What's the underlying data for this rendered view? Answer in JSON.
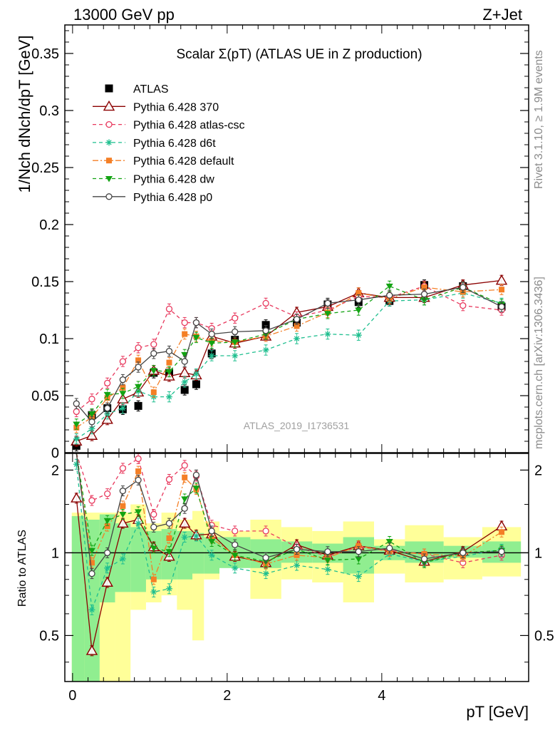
{
  "header": {
    "energy_label": "13000 GeV pp",
    "process_label": "Z+Jet"
  },
  "side_notes": {
    "rivet": "Rivet 3.1.10, ≥ 1.9M events",
    "source": "mcplots.cern.ch [arXiv:1306.3436]"
  },
  "watermark": "ATLAS_2019_I1736531",
  "chart_data": [
    {
      "type": "line",
      "panel": "main",
      "title": "Scalar Σ(pT) (ATLAS UE in Z production)",
      "xlabel": "pT [GeV]",
      "ylabel": "1/Nch dNch/dpT [GeV]",
      "xlim": [
        -0.1,
        5.9
      ],
      "ylim": [
        0,
        0.375
      ],
      "yticks": [
        0,
        0.05,
        0.1,
        0.15,
        0.2,
        0.25,
        0.3,
        0.35
      ],
      "ytick_labels": [
        "0",
        "0.05",
        "0.1",
        "0.15",
        "0.2",
        "0.25",
        "0.3",
        "0.35"
      ],
      "legend_position": "top-left",
      "x": [
        0.05,
        0.25,
        0.45,
        0.65,
        0.85,
        1.05,
        1.25,
        1.45,
        1.6,
        1.8,
        2.1,
        2.5,
        2.9,
        3.3,
        3.7,
        4.1,
        4.55,
        5.05,
        5.55
      ],
      "series": [
        {
          "name": "ATLAS",
          "color": "#000000",
          "marker": "square",
          "line": "none",
          "values": [
            0.006,
            0.033,
            0.039,
            0.038,
            0.041,
            0.07,
            0.07,
            0.055,
            0.06,
            0.087,
            0.099,
            0.112,
            0.114,
            0.13,
            0.132,
            0.133,
            0.147,
            0.146,
            0.128
          ]
        },
        {
          "name": "Pythia 6.428 370",
          "color": "#8b0000",
          "marker": "triangle-open",
          "line": "solid",
          "values": [
            0.01,
            0.015,
            0.029,
            0.047,
            0.053,
            0.072,
            0.067,
            0.07,
            0.068,
            0.102,
            0.096,
            0.102,
            0.123,
            0.128,
            0.14,
            0.136,
            0.136,
            0.147,
            0.151
          ]
        },
        {
          "name": "Pythia 6.428 atlas-csc",
          "color": "#e8385d",
          "marker": "circle-open",
          "line": "dashed",
          "values": [
            0.036,
            0.047,
            0.061,
            0.08,
            0.092,
            0.095,
            0.126,
            0.114,
            0.114,
            0.109,
            0.118,
            0.131,
            0.119,
            0.125,
            0.137,
            0.136,
            0.146,
            0.129,
            0.125
          ]
        },
        {
          "name": "Pythia 6.428 d6t",
          "color": "#1fbf8f",
          "marker": "star",
          "line": "dashed",
          "values": [
            0.012,
            0.021,
            0.034,
            0.039,
            0.054,
            0.049,
            0.049,
            0.062,
            0.069,
            0.085,
            0.085,
            0.09,
            0.1,
            0.104,
            0.103,
            0.133,
            0.134,
            0.14,
            0.131
          ]
        },
        {
          "name": "Pythia 6.428 default",
          "color": "#f47f26",
          "marker": "square-filled",
          "line": "dashdot",
          "values": [
            0.022,
            0.031,
            0.048,
            0.057,
            0.081,
            0.053,
            0.079,
            0.104,
            0.102,
            0.098,
            0.097,
            0.102,
            0.111,
            0.123,
            0.14,
            0.135,
            0.145,
            0.141,
            0.143
          ]
        },
        {
          "name": "Pythia 6.428 dw",
          "color": "#13a313",
          "marker": "triangle-down",
          "line": "dashed",
          "values": [
            0.025,
            0.034,
            0.051,
            0.052,
            0.058,
            0.072,
            0.071,
            0.086,
            0.101,
            0.096,
            0.097,
            0.104,
            0.117,
            0.122,
            0.125,
            0.146,
            0.134,
            0.145,
            0.13
          ]
        },
        {
          "name": "Pythia 6.428 p0",
          "color": "#444444",
          "marker": "circle-open",
          "line": "solid",
          "values": [
            0.043,
            0.027,
            0.039,
            0.064,
            0.075,
            0.087,
            0.089,
            0.08,
            0.114,
            0.104,
            0.106,
            0.107,
            0.117,
            0.131,
            0.134,
            0.138,
            0.139,
            0.145,
            0.128
          ]
        }
      ]
    },
    {
      "type": "line",
      "panel": "ratio",
      "xlabel": "pT [GeV]",
      "ylabel": "Ratio to ATLAS",
      "xlim": [
        -0.1,
        5.9
      ],
      "ylim": [
        0.34,
        2.3
      ],
      "log_y": true,
      "xticks": [
        0,
        2,
        4
      ],
      "xtick_labels": [
        "0",
        "2",
        "4"
      ],
      "yticks": [
        0.5,
        1,
        2
      ],
      "ytick_labels": [
        "0.5",
        "1",
        "2"
      ],
      "x": [
        0.05,
        0.25,
        0.45,
        0.65,
        0.85,
        1.05,
        1.25,
        1.45,
        1.6,
        1.8,
        2.1,
        2.5,
        2.9,
        3.3,
        3.7,
        4.1,
        4.55,
        5.05,
        5.55
      ],
      "bands": {
        "bin_edges": [
          -0.01,
          0.15,
          0.35,
          0.55,
          0.75,
          0.95,
          1.15,
          1.35,
          1.55,
          1.7,
          1.9,
          2.3,
          2.7,
          3.1,
          3.5,
          3.9,
          4.3,
          4.8,
          5.3,
          5.8
        ],
        "stat_low": [
          0.34,
          0.34,
          0.66,
          0.72,
          0.72,
          0.8,
          0.8,
          0.8,
          0.84,
          0.84,
          0.88,
          0.88,
          0.92,
          0.92,
          0.84,
          0.94,
          0.92,
          0.96,
          0.92
        ],
        "stat_high": [
          1.36,
          1.32,
          1.38,
          1.28,
          1.24,
          1.2,
          1.22,
          1.2,
          1.18,
          1.14,
          1.14,
          1.12,
          1.1,
          1.08,
          1.14,
          1.06,
          1.1,
          1.06,
          1.1
        ],
        "syst_low": [
          0.34,
          0.34,
          0.34,
          0.34,
          0.62,
          0.66,
          0.7,
          0.62,
          0.48,
          0.8,
          0.9,
          0.68,
          0.8,
          0.78,
          0.66,
          0.84,
          0.78,
          0.8,
          0.82
        ],
        "syst_high": [
          1.4,
          1.4,
          1.4,
          1.4,
          1.5,
          1.28,
          1.4,
          1.32,
          1.42,
          1.3,
          1.2,
          1.32,
          1.24,
          1.2,
          1.3,
          1.12,
          1.26,
          1.14,
          1.24
        ]
      },
      "series": [
        {
          "name": "Pythia 6.428 370",
          "values": [
            1.58,
            0.44,
            0.78,
            1.28,
            1.32,
            1.05,
            0.97,
            1.28,
            1.16,
            1.17,
            0.97,
            0.92,
            1.07,
            0.98,
            1.06,
            1.02,
            0.93,
            1.01,
            1.25
          ]
        },
        {
          "name": "Pythia 6.428 atlas-csc",
          "values": [
            2.5,
            1.55,
            1.64,
            2.03,
            2.2,
            1.38,
            1.85,
            2.08,
            1.9,
            1.26,
            1.2,
            1.2,
            1.05,
            0.97,
            1.05,
            1.02,
            0.99,
            0.92,
            0.98
          ]
        },
        {
          "name": "Pythia 6.428 d6t",
          "values": [
            2.1,
            0.62,
            0.88,
            0.95,
            1.28,
            0.72,
            0.74,
            1.14,
            1.15,
            0.98,
            0.88,
            0.84,
            0.9,
            0.87,
            0.82,
            0.99,
            0.93,
            0.97,
            1.03
          ]
        },
        {
          "name": "Pythia 6.428 default",
          "values": [
            2.6,
            0.92,
            1.25,
            1.48,
            1.98,
            0.8,
            1.13,
            1.88,
            1.7,
            1.13,
            0.98,
            0.91,
            0.98,
            0.96,
            1.06,
            1.01,
            0.99,
            0.97,
            1.19
          ]
        },
        {
          "name": "Pythia 6.428 dw",
          "values": [
            2.8,
            1.02,
            1.31,
            1.38,
            1.41,
            1.04,
            1.01,
            1.57,
            1.72,
            1.1,
            0.98,
            0.93,
            1.03,
            0.94,
            0.95,
            1.1,
            0.92,
            1.0,
            1.02
          ]
        },
        {
          "name": "Pythia 6.428 p0",
          "values": [
            2.6,
            0.84,
            1.0,
            1.68,
            1.84,
            1.24,
            1.28,
            1.45,
            1.92,
            1.2,
            1.07,
            0.96,
            1.03,
            1.01,
            1.01,
            1.04,
            0.95,
            1.0,
            1.01
          ]
        }
      ]
    }
  ]
}
